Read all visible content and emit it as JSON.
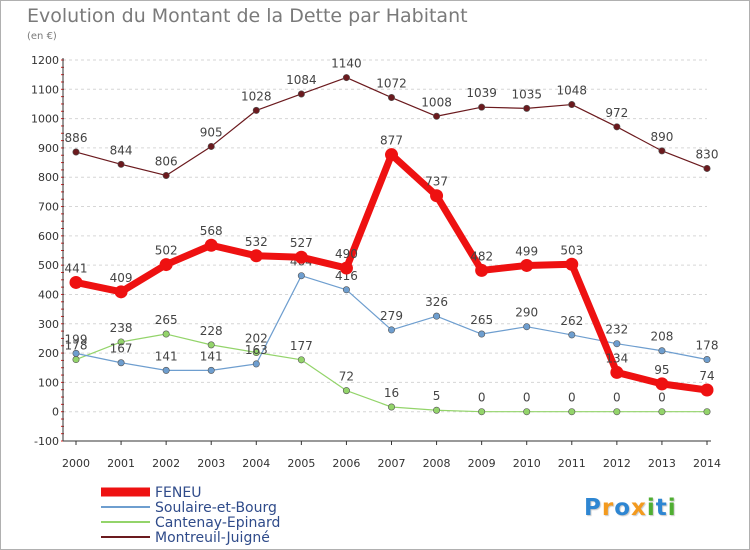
{
  "chart_data": {
    "type": "line",
    "title": "Evolution du Montant de la Dette par Habitant",
    "subtitle": "(en €)",
    "x": [
      "2000",
      "2001",
      "2002",
      "2003",
      "2004",
      "2005",
      "2006",
      "2007",
      "2008",
      "2009",
      "2010",
      "2011",
      "2012",
      "2013",
      "2014"
    ],
    "ylim": [
      -100,
      1200
    ],
    "y_ticks": [
      "-100",
      "0",
      "100",
      "200",
      "300",
      "400",
      "500",
      "600",
      "700",
      "800",
      "900",
      "1000",
      "1100",
      "1200"
    ],
    "grid": "horizontal dashed",
    "legend_position": "bottom-left",
    "series": [
      {
        "name": "Montreuil-Juigné",
        "color": "#6b1a1e",
        "values": [
          886,
          844,
          806,
          905,
          1028,
          1084,
          1140,
          1072,
          1008,
          1039,
          1035,
          1048,
          972,
          890,
          830
        ],
        "labels": [
          "886",
          "844",
          "806",
          "905",
          "1028",
          "1084",
          "1140",
          "1072",
          "1008",
          "1039",
          "1035",
          "1048",
          "972",
          "890",
          "830"
        ]
      },
      {
        "name": "Cantenay-Epinard",
        "color": "#93d46a",
        "values": [
          178,
          238,
          265,
          228,
          202,
          177,
          72,
          16,
          5,
          0,
          0,
          0,
          0,
          0,
          0
        ],
        "labels": [
          "178",
          "238",
          "265",
          "228",
          "202",
          "177",
          "72",
          "16",
          "5",
          "0",
          "0",
          "0",
          "0",
          "0",
          ""
        ]
      },
      {
        "name": "Soulaire-et-Bourg",
        "color": "#6e9ecf",
        "values": [
          199,
          167,
          141,
          141,
          163,
          464,
          416,
          279,
          326,
          265,
          290,
          262,
          232,
          208,
          178
        ],
        "labels": [
          "199",
          "167",
          "141",
          "141",
          "163",
          "464",
          "416",
          "279",
          "326",
          "265",
          "290",
          "262",
          "232",
          "208",
          "178"
        ]
      },
      {
        "name": "FENEU",
        "color": "#ee1111",
        "values": [
          441,
          409,
          502,
          568,
          532,
          527,
          490,
          877,
          737,
          482,
          499,
          503,
          134,
          95,
          74
        ],
        "labels": [
          "441",
          "409",
          "502",
          "568",
          "532",
          "527",
          "490",
          "877",
          "737",
          "482",
          "499",
          "503",
          "134",
          "95",
          "74"
        ]
      }
    ],
    "legend": [
      "FENEU",
      "Soulaire-et-Bourg",
      "Cantenay-Epinard",
      "Montreuil-Juigné"
    ]
  },
  "logo": {
    "letters": [
      "P",
      "r",
      "o",
      "x",
      "i",
      "t",
      "i"
    ],
    "colors": [
      "#2e86d2",
      "#f39a1e",
      "#2e86d2",
      "#f39a1e",
      "#4fae32",
      "#2e86d2",
      "#4fae32"
    ]
  }
}
